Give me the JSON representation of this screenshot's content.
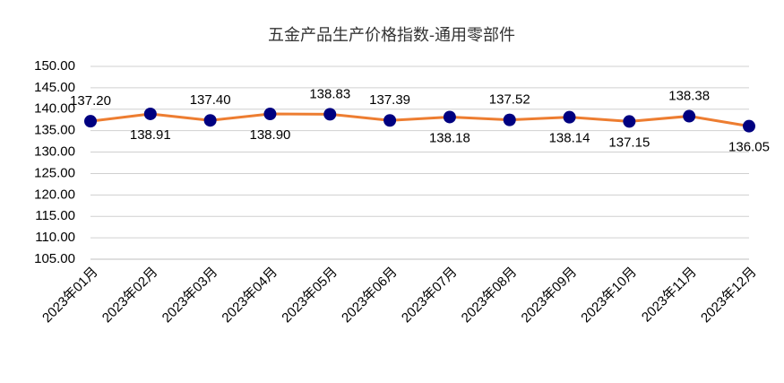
{
  "chart_data": {
    "type": "line",
    "title": "五金产品生产价格指数-通用零部件",
    "categories": [
      "2023年01月",
      "2023年02月",
      "2023年03月",
      "2023年04月",
      "2023年05月",
      "2023年06月",
      "2023年07月",
      "2023年08月",
      "2023年09月",
      "2023年10月",
      "2023年11月",
      "2023年12月"
    ],
    "series": [
      {
        "name": "通用零部件",
        "color": "#ED7D31",
        "marker_color": "#000080",
        "values": [
          137.2,
          138.91,
          137.4,
          138.9,
          138.83,
          137.39,
          138.18,
          137.52,
          138.14,
          137.15,
          138.38,
          136.05
        ],
        "value_labels": [
          "137.20",
          "138.91",
          "137.40",
          "138.90",
          "138.83",
          "137.39",
          "138.18",
          "137.52",
          "138.14",
          "137.15",
          "138.38",
          "136.05"
        ]
      }
    ],
    "ylim": [
      105,
      150
    ],
    "yticks": [
      {
        "value": 105,
        "label": "105.00"
      },
      {
        "value": 110,
        "label": "110.00"
      },
      {
        "value": 115,
        "label": "115.00"
      },
      {
        "value": 120,
        "label": "120.00"
      },
      {
        "value": 125,
        "label": "125.00"
      },
      {
        "value": 130,
        "label": "130.00"
      },
      {
        "value": 135,
        "label": "135.00"
      },
      {
        "value": 140,
        "label": "140.00"
      },
      {
        "value": 145,
        "label": "145.00"
      },
      {
        "value": 150,
        "label": "150.00"
      }
    ],
    "grid": true
  }
}
